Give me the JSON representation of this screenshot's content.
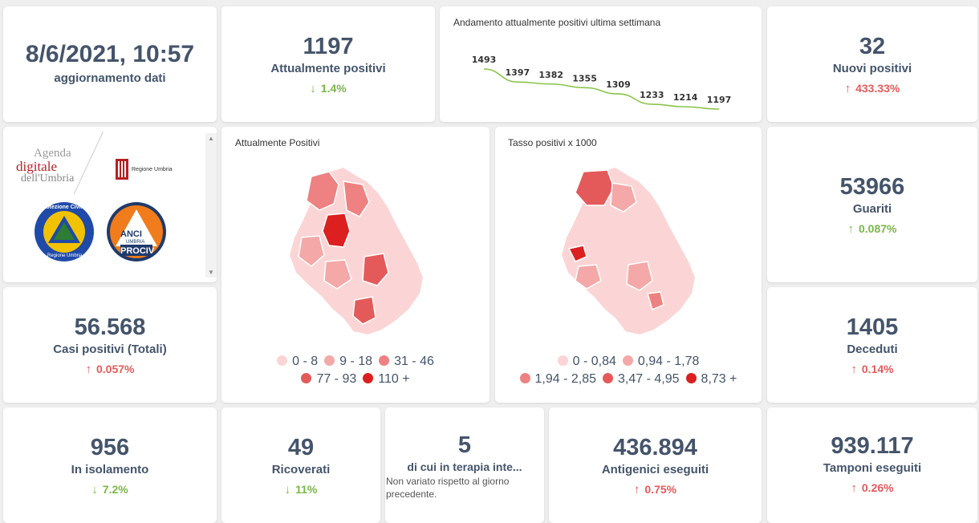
{
  "update": {
    "datetime": "8/6/2021, 10:57",
    "label": "aggiornamento dati"
  },
  "current_positive": {
    "value": "1197",
    "label": "Attualmente positivi",
    "change": "1.4%",
    "direction": "down",
    "arrow_icon": "arrow-down-icon"
  },
  "trend": {
    "title": "Andamento attualmente positivi ultima settimana",
    "chart_data": {
      "type": "line",
      "values": [
        1493,
        1397,
        1382,
        1355,
        1309,
        1233,
        1214,
        1197
      ],
      "data_labels": [
        "1493",
        "1397",
        "1382",
        "1355",
        "1309",
        "1233",
        "1214",
        "1197"
      ],
      "color": "#8bc34a"
    }
  },
  "new_positive": {
    "value": "32",
    "label": "Nuovi positivi",
    "change": "433.33%",
    "direction": "up"
  },
  "logos": {
    "agenda_line1": "Agenda",
    "agenda_line2": "digitale",
    "agenda_line3": "dell'Umbria",
    "regione": "Regione Umbria",
    "protezione": "Protezione Civile",
    "protezione_sub": "Regione Umbria",
    "anci": "ANCI",
    "anci_sub": "UMBRIA",
    "prociv": "PROCIV"
  },
  "map_positive": {
    "title": "Attualmente Positivi",
    "legend": [
      {
        "label": "0 - 8",
        "color": "#fbd5d5"
      },
      {
        "label": "9 - 18",
        "color": "#f4a8a8"
      },
      {
        "label": "31 - 46",
        "color": "#ee8181"
      },
      {
        "label": "77 - 93",
        "color": "#e45a5a"
      },
      {
        "label": "110 +",
        "color": "#dc1f1f"
      }
    ]
  },
  "map_rate": {
    "title": "Tasso positivi x 1000",
    "legend": [
      {
        "label": "0 - 0,84",
        "color": "#fbd5d5"
      },
      {
        "label": "0,94 - 1,78",
        "color": "#f4a8a8"
      },
      {
        "label": "1,94 - 2,85",
        "color": "#ee8181"
      },
      {
        "label": "3,47 - 4,95",
        "color": "#e45a5a"
      },
      {
        "label": "8,73 +",
        "color": "#dc1f1f"
      }
    ]
  },
  "recovered": {
    "value": "53966",
    "label": "Guariti",
    "change": "0.087%",
    "direction": "up"
  },
  "total_cases": {
    "value": "56.568",
    "label": "Casi positivi (Totali)",
    "change": "0.057%",
    "direction": "up"
  },
  "deaths": {
    "value": "1405",
    "label": "Deceduti",
    "change": "0.14%",
    "direction": "up"
  },
  "isolation": {
    "value": "956",
    "label": "In isolamento",
    "change": "7.2%",
    "direction": "down"
  },
  "hospitalized": {
    "value": "49",
    "label": "Ricoverati",
    "change": "11%",
    "direction": "down"
  },
  "icu": {
    "value": "5",
    "label": "di cui in terapia inte...",
    "note": "Non variato rispetto al giorno precedente."
  },
  "antigen": {
    "value": "436.894",
    "label": "Antigenici eseguiti",
    "change": "0.75%",
    "direction": "up"
  },
  "swabs": {
    "value": "939.117",
    "label": "Tamponi eseguiti",
    "change": "0.26%",
    "direction": "up"
  }
}
